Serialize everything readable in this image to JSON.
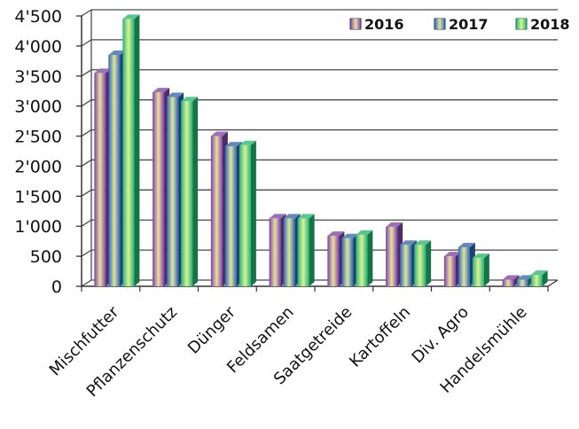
{
  "chart_data": {
    "type": "bar",
    "categories": [
      "Mischfutter",
      "Pflanzenschutz",
      "Dünger",
      "Feldsamen",
      "Saatgetreide",
      "Kartoffeln",
      "Div. Agro",
      "Handelsmühle"
    ],
    "series": [
      {
        "name": "2016",
        "values": [
          3550,
          3230,
          2500,
          1130,
          840,
          990,
          500,
          110
        ],
        "color": "#7b3fa0"
      },
      {
        "name": "2017",
        "values": [
          3850,
          3150,
          2330,
          1130,
          800,
          690,
          650,
          110
        ],
        "color": "#2e63a8"
      },
      {
        "name": "2018",
        "values": [
          4450,
          3080,
          2350,
          1130,
          860,
          690,
          470,
          190
        ],
        "color": "#1fb36b"
      }
    ],
    "yticks": [
      "0",
      "500",
      "1'000",
      "1'500",
      "2'000",
      "2'500",
      "3'000",
      "3'500",
      "4'000",
      "4'500"
    ],
    "ylim": [
      0,
      4500
    ],
    "grid": true,
    "legend_position": "top-right",
    "style": "3d-bars"
  }
}
